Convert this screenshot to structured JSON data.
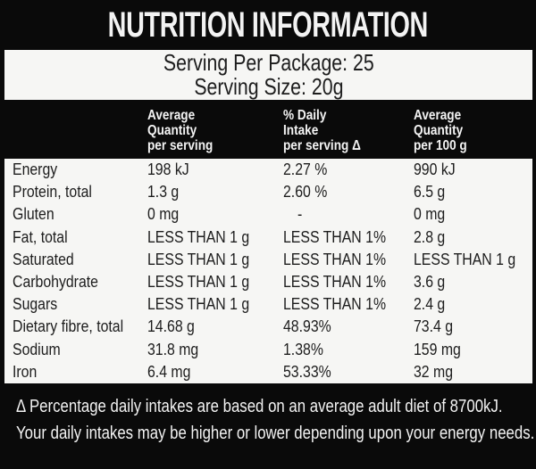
{
  "colors": {
    "label_black": "#0a0a0a",
    "panel_white": "#f6f6f4",
    "text_dark": "#1d1d1d",
    "text_light": "#f3f3f3"
  },
  "header": {
    "title": "NUTRITION INFORMATION"
  },
  "serving": {
    "per_package": "Serving Per Package: 25",
    "size": "Serving Size: 20g"
  },
  "table": {
    "columns": [
      {
        "lines": [
          "Average",
          "Quantity",
          "per serving"
        ]
      },
      {
        "lines": [
          "% Daily",
          "Intake",
          "per serving Δ"
        ]
      },
      {
        "lines": [
          "Average",
          "Quantity",
          "per 100 g"
        ]
      }
    ],
    "rows": [
      {
        "label": "Energy",
        "per_serving": "198 kJ",
        "daily_intake": "2.27 %",
        "per_100g": "990 kJ"
      },
      {
        "label": "Protein, total",
        "per_serving": "1.3 g",
        "daily_intake": "2.60 %",
        "per_100g": "6.5 g"
      },
      {
        "label": "Gluten",
        "per_serving": "0 mg",
        "daily_intake": "-",
        "per_100g": "0 mg"
      },
      {
        "label": "Fat, total",
        "per_serving": "LESS THAN 1 g",
        "daily_intake": "LESS THAN 1%",
        "per_100g": "2.8 g"
      },
      {
        "label": "Saturated",
        "per_serving": "LESS THAN 1 g",
        "daily_intake": "LESS THAN 1%",
        "per_100g": "LESS THAN 1 g"
      },
      {
        "label": "Carbohydrate",
        "per_serving": "LESS THAN 1 g",
        "daily_intake": "LESS THAN 1%",
        "per_100g": "3.6 g"
      },
      {
        "label": "Sugars",
        "per_serving": "LESS THAN 1 g",
        "daily_intake": "LESS THAN 1%",
        "per_100g": "2.4 g"
      },
      {
        "label": "Dietary fibre, total",
        "per_serving": "14.68 g",
        "daily_intake": "48.93%",
        "per_100g": "73.4 g"
      },
      {
        "label": "Sodium",
        "per_serving": "31.8 mg",
        "daily_intake": "1.38%",
        "per_100g": "159 mg"
      },
      {
        "label": "Iron",
        "per_serving": "6.4 mg",
        "daily_intake": "53.33%",
        "per_100g": "32 mg"
      }
    ]
  },
  "footnote": {
    "line1": "Δ Percentage daily intakes are based on an average adult diet of 8700kJ.",
    "line2": "Your daily intakes may be higher or lower depending upon your energy needs."
  }
}
